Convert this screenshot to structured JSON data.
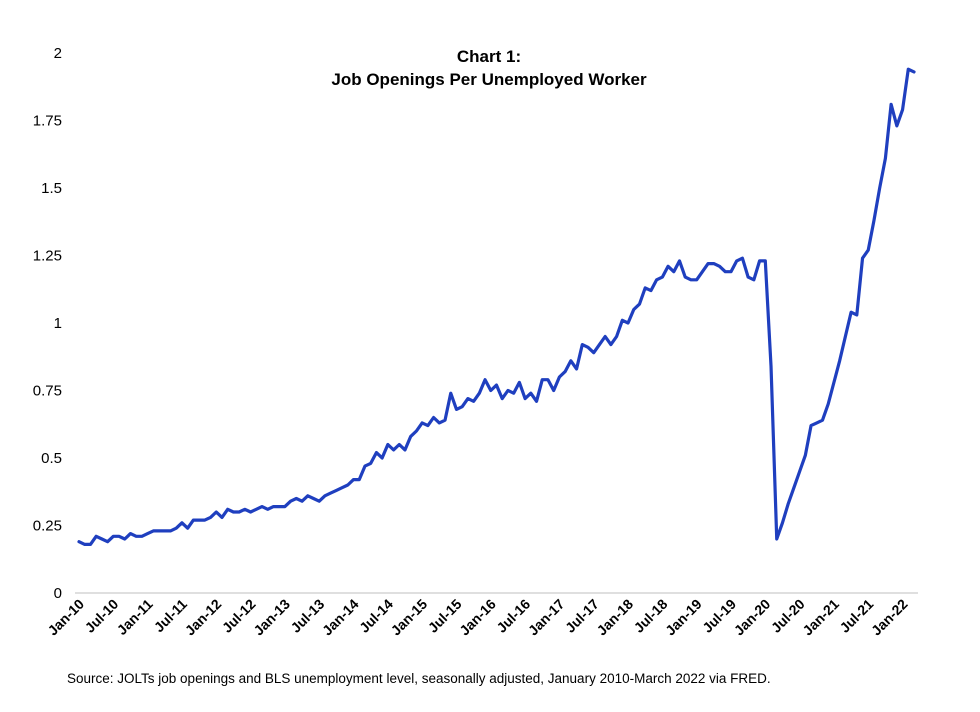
{
  "chart_data": {
    "type": "line",
    "title": "Chart 1:",
    "subtitle": "Job Openings Per Unemployed Worker",
    "source": "Source: JOLTs job openings and BLS unemployment level, seasonally adjusted, January 2010-March 2022 via FRED.",
    "xlabel": "",
    "ylabel": "",
    "ylim": [
      0,
      2
    ],
    "yticks": [
      0,
      0.25,
      0.5,
      0.75,
      1,
      1.25,
      1.5,
      1.75,
      2
    ],
    "ytick_labels": [
      "0",
      "0.25",
      "0.5",
      "0.75",
      "1",
      "1.25",
      "1.5",
      "1.75",
      "2"
    ],
    "x_start": "Jan-10",
    "x_end": "Mar-22",
    "xtick_labels": [
      "Jan-10",
      "Jul-10",
      "Jan-11",
      "Jul-11",
      "Jan-12",
      "Jul-12",
      "Jan-13",
      "Jul-13",
      "Jan-14",
      "Jul-14",
      "Jan-15",
      "Jul-15",
      "Jan-16",
      "Jul-16",
      "Jan-17",
      "Jul-17",
      "Jan-18",
      "Jul-18",
      "Jan-19",
      "Jul-19",
      "Jan-20",
      "Jul-20",
      "Jan-21",
      "Jul-21",
      "Jan-22"
    ],
    "grid": false,
    "line_color": "#1f3fbf",
    "values": [
      0.19,
      0.18,
      0.18,
      0.21,
      0.2,
      0.19,
      0.21,
      0.21,
      0.2,
      0.22,
      0.21,
      0.21,
      0.22,
      0.23,
      0.23,
      0.23,
      0.23,
      0.24,
      0.26,
      0.24,
      0.27,
      0.27,
      0.27,
      0.28,
      0.3,
      0.28,
      0.31,
      0.3,
      0.3,
      0.31,
      0.3,
      0.31,
      0.32,
      0.31,
      0.32,
      0.32,
      0.32,
      0.34,
      0.35,
      0.34,
      0.36,
      0.35,
      0.34,
      0.36,
      0.37,
      0.38,
      0.39,
      0.4,
      0.42,
      0.42,
      0.47,
      0.48,
      0.52,
      0.5,
      0.55,
      0.53,
      0.55,
      0.53,
      0.58,
      0.6,
      0.63,
      0.62,
      0.65,
      0.63,
      0.64,
      0.74,
      0.68,
      0.69,
      0.72,
      0.71,
      0.74,
      0.79,
      0.75,
      0.77,
      0.72,
      0.75,
      0.74,
      0.78,
      0.72,
      0.74,
      0.71,
      0.79,
      0.79,
      0.75,
      0.8,
      0.82,
      0.86,
      0.83,
      0.92,
      0.91,
      0.89,
      0.92,
      0.95,
      0.92,
      0.95,
      1.01,
      1.0,
      1.05,
      1.07,
      1.13,
      1.12,
      1.16,
      1.17,
      1.21,
      1.19,
      1.23,
      1.17,
      1.16,
      1.16,
      1.19,
      1.22,
      1.22,
      1.21,
      1.19,
      1.19,
      1.23,
      1.24,
      1.17,
      1.16,
      1.23,
      1.23,
      0.84,
      0.2,
      0.26,
      0.33,
      0.39,
      0.45,
      0.51,
      0.62,
      0.63,
      0.64,
      0.7,
      0.78,
      0.86,
      0.95,
      1.04,
      1.03,
      1.24,
      1.27,
      1.38,
      1.5,
      1.61,
      1.81,
      1.73,
      1.79,
      1.94,
      1.93
    ]
  }
}
